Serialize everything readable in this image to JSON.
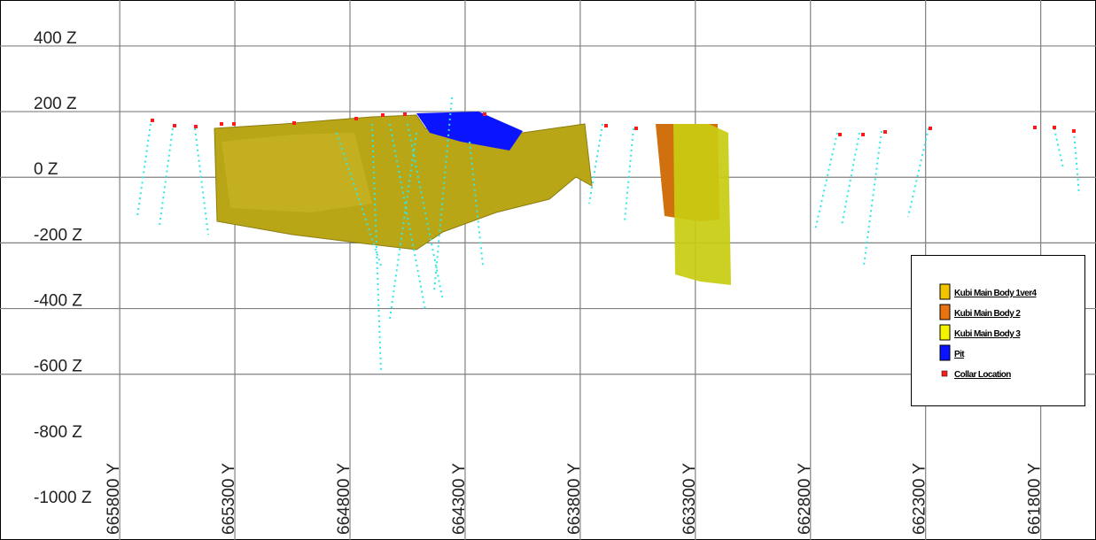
{
  "section": {
    "zlim": [
      540,
      -1105
    ],
    "ylim": [
      666320,
      661560
    ],
    "z_ticks": [
      {
        "value": 400,
        "label": "400 Z"
      },
      {
        "value": 200,
        "label": "200 Z"
      },
      {
        "value": 0,
        "label": "0 Z"
      },
      {
        "value": -200,
        "label": "-200 Z"
      },
      {
        "value": -400,
        "label": "-400 Z"
      },
      {
        "value": -600,
        "label": "-600 Z"
      },
      {
        "value": -800,
        "label": "-800 Z"
      },
      {
        "value": -1000,
        "label": "-1000 Z"
      }
    ],
    "y_ticks": [
      {
        "value": 665800,
        "label": "665800 Y"
      },
      {
        "value": 665300,
        "label": "665300 Y"
      },
      {
        "value": 664800,
        "label": "664800 Y"
      },
      {
        "value": 664300,
        "label": "664300 Y"
      },
      {
        "value": 663800,
        "label": "663800 Y"
      },
      {
        "value": 663300,
        "label": "663300 Y"
      },
      {
        "value": 662800,
        "label": "662800 Y"
      },
      {
        "value": 662300,
        "label": "662300 Y"
      },
      {
        "value": 661800,
        "label": "661800 Y"
      }
    ],
    "legend": [
      {
        "label": "Kubi Main Body 1ver4",
        "color": "#f2c400"
      },
      {
        "label": "Kubi Main Body 2",
        "color": "#e8730f"
      },
      {
        "label": "Kubi Main Body 3",
        "color": "#f4f400"
      },
      {
        "label": "Pit",
        "color": "#0a14ff"
      },
      {
        "label": "Collar Location",
        "color": "#ff1a1a"
      }
    ]
  }
}
